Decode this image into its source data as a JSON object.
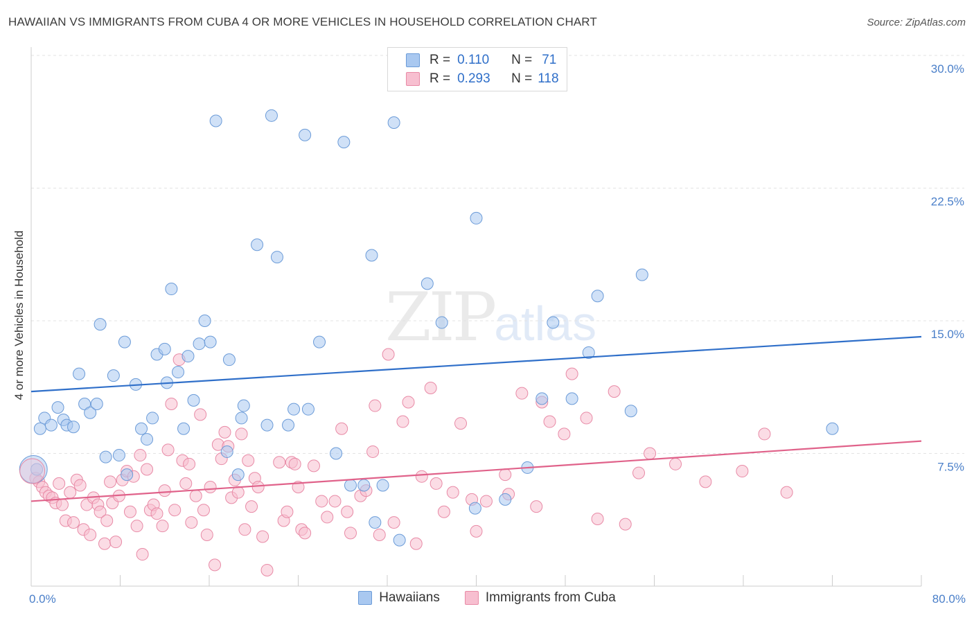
{
  "title": "HAWAIIAN VS IMMIGRANTS FROM CUBA 4 OR MORE VEHICLES IN HOUSEHOLD CORRELATION CHART",
  "source": "Source: ZipAtlas.com",
  "watermark": {
    "zip": "ZIP",
    "atlas": "atlas"
  },
  "legend": {
    "r_label": "R =",
    "n_label": "N =",
    "rows": [
      {
        "r": "0.110",
        "n": "71",
        "color": "#a9c8f0"
      },
      {
        "r": "0.293",
        "n": "118",
        "color": "#f7bfd0"
      }
    ]
  },
  "bottom_legend": [
    "Hawaiians",
    "Immigrants from Cuba"
  ],
  "colors": {
    "blue_fill": "#a9c8f0",
    "blue_stroke": "#6b9bd8",
    "blue_line": "#2f6fc9",
    "pink_fill": "#f7bfd0",
    "pink_stroke": "#e88aa6",
    "pink_line": "#e0628a",
    "grid": "#e3e3e3",
    "tick_text": "#4a7fc9"
  },
  "chart_data": {
    "type": "scatter",
    "title": "HAWAIIAN VS IMMIGRANTS FROM CUBA 4 OR MORE VEHICLES IN HOUSEHOLD CORRELATION CHART",
    "xlabel": "",
    "ylabel": "4 or more Vehicles in Household",
    "xlim": [
      0,
      80
    ],
    "ylim": [
      0,
      30
    ],
    "x_tick_labels": [
      "0.0%",
      "80.0%"
    ],
    "y_ticks": [
      7.5,
      15.0,
      22.5,
      30.0
    ],
    "y_tick_labels": [
      "7.5%",
      "15.0%",
      "22.5%",
      "30.0%"
    ],
    "grid": true,
    "legend_position": "top-center",
    "series": [
      {
        "name": "Hawaiians",
        "trend": {
          "x": [
            0,
            80
          ],
          "y": [
            11.0,
            14.1
          ]
        },
        "points": [
          [
            0.5,
            6.6
          ],
          [
            0.8,
            8.9
          ],
          [
            1.2,
            9.5
          ],
          [
            1.8,
            9.1
          ],
          [
            2.4,
            10.1
          ],
          [
            2.9,
            9.4
          ],
          [
            3.2,
            9.1
          ],
          [
            3.8,
            9.0
          ],
          [
            4.3,
            12.0
          ],
          [
            4.8,
            10.3
          ],
          [
            5.3,
            9.8
          ],
          [
            5.9,
            10.3
          ],
          [
            6.2,
            14.8
          ],
          [
            6.7,
            7.3
          ],
          [
            7.4,
            11.9
          ],
          [
            7.9,
            7.4
          ],
          [
            8.4,
            13.8
          ],
          [
            8.6,
            6.3
          ],
          [
            9.4,
            11.4
          ],
          [
            9.9,
            8.9
          ],
          [
            10.4,
            8.3
          ],
          [
            10.9,
            9.5
          ],
          [
            11.3,
            13.1
          ],
          [
            12.0,
            13.4
          ],
          [
            12.2,
            11.5
          ],
          [
            12.6,
            16.8
          ],
          [
            13.2,
            12.1
          ],
          [
            13.7,
            8.9
          ],
          [
            14.1,
            13.0
          ],
          [
            14.6,
            10.5
          ],
          [
            15.1,
            13.7
          ],
          [
            15.6,
            15.0
          ],
          [
            16.1,
            13.8
          ],
          [
            16.6,
            26.3
          ],
          [
            17.6,
            7.6
          ],
          [
            17.8,
            12.8
          ],
          [
            18.6,
            6.3
          ],
          [
            18.9,
            9.5
          ],
          [
            19.1,
            10.2
          ],
          [
            20.3,
            19.3
          ],
          [
            21.2,
            9.1
          ],
          [
            21.6,
            26.6
          ],
          [
            22.1,
            18.6
          ],
          [
            23.1,
            9.1
          ],
          [
            23.6,
            10.0
          ],
          [
            24.6,
            25.5
          ],
          [
            24.9,
            10.0
          ],
          [
            25.9,
            13.8
          ],
          [
            27.4,
            7.5
          ],
          [
            28.1,
            25.1
          ],
          [
            28.7,
            5.7
          ],
          [
            29.9,
            5.7
          ],
          [
            30.6,
            18.7
          ],
          [
            30.9,
            3.6
          ],
          [
            31.6,
            5.7
          ],
          [
            32.6,
            26.2
          ],
          [
            33.1,
            2.6
          ],
          [
            35.6,
            17.1
          ],
          [
            36.9,
            14.9
          ],
          [
            39.9,
            4.4
          ],
          [
            40.0,
            20.8
          ],
          [
            42.6,
            4.9
          ],
          [
            44.6,
            6.7
          ],
          [
            45.9,
            10.6
          ],
          [
            46.9,
            14.9
          ],
          [
            48.6,
            10.6
          ],
          [
            50.1,
            13.2
          ],
          [
            50.9,
            16.4
          ],
          [
            53.9,
            9.9
          ],
          [
            54.9,
            17.6
          ],
          [
            72.0,
            8.9
          ]
        ]
      },
      {
        "name": "Immigrants from Cuba",
        "trend": {
          "x": [
            0,
            80
          ],
          "y": [
            4.8,
            8.2
          ]
        },
        "points": [
          [
            0.4,
            6.1
          ],
          [
            0.7,
            5.9
          ],
          [
            1.0,
            5.6
          ],
          [
            1.3,
            5.3
          ],
          [
            1.6,
            5.1
          ],
          [
            1.9,
            5.0
          ],
          [
            2.2,
            4.7
          ],
          [
            2.5,
            5.8
          ],
          [
            2.8,
            4.6
          ],
          [
            3.1,
            3.7
          ],
          [
            3.5,
            5.3
          ],
          [
            3.8,
            3.6
          ],
          [
            4.1,
            6.0
          ],
          [
            4.4,
            5.7
          ],
          [
            4.7,
            3.2
          ],
          [
            5.0,
            4.6
          ],
          [
            5.3,
            2.9
          ],
          [
            5.6,
            5.0
          ],
          [
            6.0,
            4.6
          ],
          [
            6.2,
            4.2
          ],
          [
            6.6,
            2.4
          ],
          [
            6.8,
            3.7
          ],
          [
            7.1,
            5.9
          ],
          [
            7.3,
            4.7
          ],
          [
            7.6,
            2.5
          ],
          [
            7.9,
            5.1
          ],
          [
            8.2,
            6.0
          ],
          [
            8.6,
            6.5
          ],
          [
            8.9,
            4.2
          ],
          [
            9.2,
            6.2
          ],
          [
            9.5,
            3.4
          ],
          [
            9.8,
            7.4
          ],
          [
            10.0,
            1.8
          ],
          [
            10.4,
            6.6
          ],
          [
            10.7,
            4.3
          ],
          [
            11.0,
            4.6
          ],
          [
            11.3,
            4.1
          ],
          [
            11.8,
            3.4
          ],
          [
            12.0,
            5.4
          ],
          [
            12.3,
            7.7
          ],
          [
            12.6,
            10.3
          ],
          [
            12.9,
            4.3
          ],
          [
            13.3,
            12.8
          ],
          [
            13.6,
            7.1
          ],
          [
            13.9,
            5.8
          ],
          [
            14.2,
            6.9
          ],
          [
            14.4,
            3.6
          ],
          [
            14.8,
            5.1
          ],
          [
            15.2,
            9.7
          ],
          [
            15.5,
            4.3
          ],
          [
            15.8,
            2.9
          ],
          [
            16.1,
            5.6
          ],
          [
            16.5,
            1.2
          ],
          [
            16.8,
            8.0
          ],
          [
            17.1,
            7.2
          ],
          [
            17.4,
            8.7
          ],
          [
            17.7,
            7.9
          ],
          [
            18.0,
            5.0
          ],
          [
            18.3,
            6.0
          ],
          [
            18.6,
            5.3
          ],
          [
            18.9,
            8.6
          ],
          [
            19.2,
            3.2
          ],
          [
            19.5,
            7.1
          ],
          [
            19.8,
            4.5
          ],
          [
            20.1,
            6.1
          ],
          [
            20.4,
            5.6
          ],
          [
            20.8,
            2.8
          ],
          [
            21.2,
            0.9
          ],
          [
            22.3,
            7.0
          ],
          [
            22.7,
            3.7
          ],
          [
            23.0,
            4.2
          ],
          [
            23.4,
            7.0
          ],
          [
            23.7,
            6.9
          ],
          [
            24.0,
            5.6
          ],
          [
            24.3,
            3.2
          ],
          [
            24.6,
            3.0
          ],
          [
            25.4,
            6.8
          ],
          [
            26.1,
            4.8
          ],
          [
            26.6,
            3.9
          ],
          [
            27.3,
            4.8
          ],
          [
            27.9,
            8.9
          ],
          [
            28.4,
            4.2
          ],
          [
            28.7,
            3.0
          ],
          [
            29.6,
            5.1
          ],
          [
            30.1,
            5.4
          ],
          [
            30.7,
            7.6
          ],
          [
            30.9,
            10.2
          ],
          [
            31.3,
            2.9
          ],
          [
            32.1,
            13.1
          ],
          [
            32.6,
            3.6
          ],
          [
            33.4,
            9.3
          ],
          [
            33.9,
            10.4
          ],
          [
            34.6,
            2.4
          ],
          [
            35.1,
            6.2
          ],
          [
            35.9,
            11.2
          ],
          [
            36.4,
            5.8
          ],
          [
            37.1,
            4.2
          ],
          [
            37.9,
            5.3
          ],
          [
            38.6,
            9.2
          ],
          [
            39.6,
            4.9
          ],
          [
            40.0,
            3.1
          ],
          [
            40.9,
            4.8
          ],
          [
            42.6,
            6.3
          ],
          [
            42.9,
            5.2
          ],
          [
            44.1,
            10.9
          ],
          [
            45.4,
            4.5
          ],
          [
            45.9,
            10.4
          ],
          [
            46.6,
            9.3
          ],
          [
            47.9,
            8.6
          ],
          [
            48.6,
            12.0
          ],
          [
            49.9,
            9.5
          ],
          [
            50.9,
            3.8
          ],
          [
            52.4,
            11.0
          ],
          [
            53.4,
            3.5
          ],
          [
            54.6,
            6.4
          ],
          [
            55.6,
            7.5
          ],
          [
            57.9,
            6.9
          ],
          [
            60.6,
            5.9
          ],
          [
            63.9,
            6.5
          ],
          [
            65.9,
            8.6
          ],
          [
            67.9,
            5.3
          ]
        ]
      }
    ]
  }
}
